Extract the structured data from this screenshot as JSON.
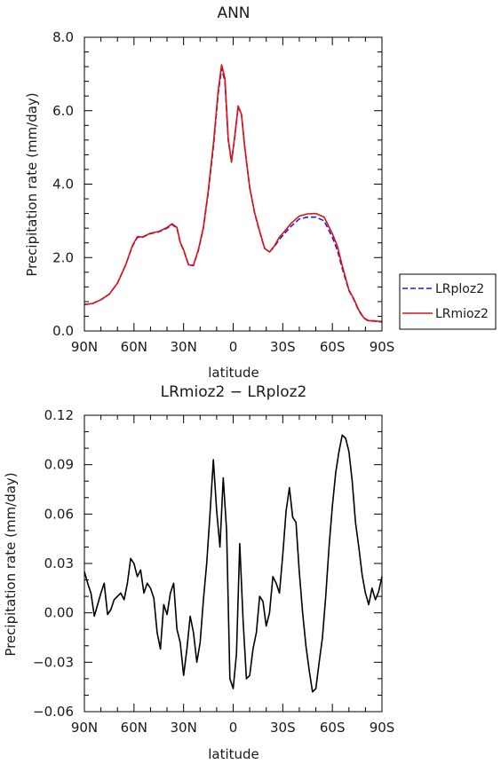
{
  "chart_data": [
    {
      "type": "line",
      "title": "ANN",
      "xlabel": "latitude",
      "ylabel": "Precipitation rate (mm/day)",
      "xlim": [
        -90,
        90
      ],
      "ylim": [
        0,
        8
      ],
      "x_tick_values": [
        -90,
        -60,
        -30,
        0,
        30,
        60,
        90
      ],
      "x_tick_labels": [
        "90N",
        "60N",
        "30N",
        "0",
        "30S",
        "60S",
        "90S"
      ],
      "y_tick_values": [
        0,
        2,
        4,
        6,
        8
      ],
      "y_tick_labels": [
        "0.0",
        "2.0",
        "4.0",
        "6.0",
        "8.0"
      ],
      "legend_position": "right",
      "x": [
        -90,
        -85,
        -80,
        -75,
        -70,
        -65,
        -61,
        -58,
        -55,
        -50,
        -45,
        -40,
        -37,
        -34,
        -32,
        -30,
        -27,
        -24,
        -21,
        -18,
        -15,
        -12,
        -9,
        -7,
        -5,
        -3,
        -1,
        1,
        3,
        5,
        7,
        10,
        13,
        16,
        19,
        22,
        25,
        28,
        31,
        35,
        40,
        45,
        50,
        55,
        60,
        63,
        66,
        70,
        73,
        76,
        79,
        82,
        85,
        88,
        90
      ],
      "series": [
        {
          "name": "LRploz2",
          "color": "#1f1fd6",
          "dash": "dashed",
          "values": [
            0.72,
            0.75,
            0.85,
            1.0,
            1.3,
            1.8,
            2.3,
            2.55,
            2.55,
            2.65,
            2.7,
            2.8,
            2.9,
            2.8,
            2.4,
            2.2,
            1.8,
            1.78,
            2.2,
            2.8,
            3.8,
            5.0,
            6.5,
            7.15,
            6.8,
            5.2,
            4.6,
            5.3,
            6.1,
            5.9,
            5.0,
            3.9,
            3.2,
            2.7,
            2.25,
            2.15,
            2.3,
            2.5,
            2.65,
            2.85,
            3.05,
            3.1,
            3.1,
            3.0,
            2.55,
            2.2,
            1.7,
            1.1,
            0.85,
            0.55,
            0.35,
            0.27,
            0.27,
            0.25,
            0.25
          ]
        },
        {
          "name": "LRmioz2",
          "color": "#e01010",
          "dash": "solid",
          "values": [
            0.72,
            0.75,
            0.85,
            1.0,
            1.3,
            1.8,
            2.32,
            2.57,
            2.56,
            2.66,
            2.71,
            2.82,
            2.92,
            2.82,
            2.42,
            2.21,
            1.8,
            1.79,
            2.22,
            2.83,
            3.85,
            5.09,
            6.58,
            7.25,
            6.88,
            5.24,
            4.61,
            5.33,
            6.13,
            5.91,
            5.01,
            3.91,
            3.22,
            2.72,
            2.25,
            2.15,
            2.32,
            2.56,
            2.71,
            2.93,
            3.13,
            3.19,
            3.2,
            3.1,
            2.65,
            2.31,
            1.78,
            1.12,
            0.87,
            0.57,
            0.36,
            0.28,
            0.28,
            0.26,
            0.26
          ]
        }
      ]
    },
    {
      "type": "line",
      "title": "LRmioz2 − LRploz2",
      "xlabel": "latitude",
      "ylabel": "Precipitation rate (mm/day)",
      "xlim": [
        -90,
        90
      ],
      "ylim": [
        -0.06,
        0.12
      ],
      "x_tick_values": [
        -90,
        -60,
        -30,
        0,
        30,
        60,
        90
      ],
      "x_tick_labels": [
        "90N",
        "60N",
        "30N",
        "0",
        "30S",
        "60S",
        "90S"
      ],
      "y_tick_values": [
        -0.06,
        -0.03,
        0,
        0.03,
        0.06,
        0.09,
        0.12
      ],
      "y_tick_labels": [
        "−0.06",
        "−0.03",
        "0.00",
        "0.03",
        "0.06",
        "0.09",
        "0.12"
      ],
      "x": [
        -90,
        -88,
        -86,
        -84,
        -82,
        -80,
        -78,
        -76,
        -74,
        -72,
        -70,
        -68,
        -66,
        -64,
        -62,
        -60,
        -58,
        -56,
        -54,
        -52,
        -50,
        -48,
        -46,
        -44,
        -42,
        -40,
        -38,
        -36,
        -34,
        -32,
        -30,
        -28,
        -26,
        -24,
        -22,
        -20,
        -18,
        -16,
        -14,
        -12,
        -10,
        -8,
        -6,
        -4,
        -2,
        0,
        2,
        4,
        6,
        8,
        10,
        12,
        14,
        16,
        18,
        20,
        22,
        24,
        26,
        28,
        30,
        32,
        34,
        36,
        38,
        40,
        42,
        44,
        46,
        48,
        50,
        52,
        54,
        56,
        58,
        60,
        62,
        64,
        66,
        68,
        70,
        72,
        74,
        76,
        78,
        80,
        82,
        84,
        86,
        88,
        90
      ],
      "series": [
        {
          "name": "",
          "color": "#000000",
          "dash": "solid",
          "values": [
            0.025,
            0.018,
            0.012,
            -0.002,
            0.005,
            0.012,
            0.018,
            -0.001,
            0.002,
            0.008,
            0.01,
            0.012,
            0.008,
            0.018,
            0.033,
            0.03,
            0.022,
            0.026,
            0.012,
            0.018,
            0.015,
            0.009,
            -0.012,
            -0.022,
            0.005,
            -0.001,
            0.012,
            0.018,
            -0.01,
            -0.018,
            -0.038,
            -0.022,
            -0.002,
            -0.012,
            -0.03,
            -0.018,
            0.008,
            0.03,
            0.06,
            0.093,
            0.062,
            0.04,
            0.082,
            0.05,
            -0.04,
            -0.046,
            -0.025,
            0.042,
            -0.005,
            -0.04,
            -0.038,
            -0.022,
            -0.012,
            0.01,
            0.007,
            -0.008,
            0.0,
            0.022,
            0.018,
            0.012,
            0.035,
            0.062,
            0.076,
            0.058,
            0.055,
            0.025,
            0.0,
            -0.02,
            -0.035,
            -0.048,
            -0.046,
            -0.03,
            -0.015,
            0.01,
            0.04,
            0.065,
            0.085,
            0.098,
            0.108,
            0.106,
            0.098,
            0.08,
            0.055,
            0.04,
            0.023,
            0.012,
            0.005,
            0.015,
            0.008,
            0.013,
            0.022
          ]
        }
      ]
    }
  ]
}
